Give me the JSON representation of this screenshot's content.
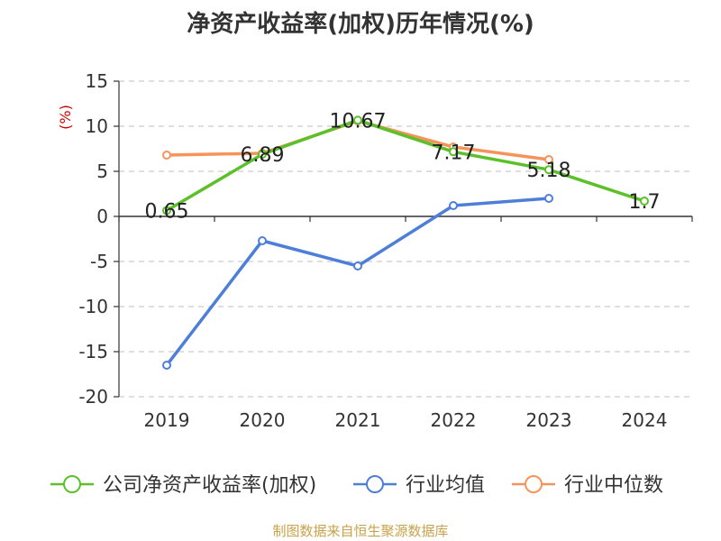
{
  "title": "净资产收益率(加权)历年情况(%)",
  "source": "制图数据来自恒生聚源数据库",
  "chart_data": {
    "type": "line",
    "title": "净资产收益率(加权)历年情况(%)",
    "ylabel": "(%)",
    "categories": [
      "2019",
      "2020",
      "2021",
      "2022",
      "2023",
      "2024"
    ],
    "ylim": [
      -20,
      15
    ],
    "yticks": [
      15,
      10,
      5,
      0,
      -5,
      -10,
      -15,
      -20
    ],
    "grid": true,
    "legend_position": "bottom",
    "series": [
      {
        "name": "公司净资产收益率(加权)",
        "color": "#5cc02b",
        "values": [
          0.65,
          6.89,
          10.67,
          7.17,
          5.18,
          1.7
        ],
        "labels": [
          "0.65",
          "6.89",
          "10.67",
          "7.17",
          "5.18",
          "1.7"
        ]
      },
      {
        "name": "行业均值",
        "color": "#4e7fd8",
        "values": [
          -16.5,
          -2.7,
          -5.5,
          1.2,
          2.0,
          null
        ]
      },
      {
        "name": "行业中位数",
        "color": "#f5935a",
        "values": [
          6.8,
          7.0,
          10.6,
          7.7,
          6.3,
          null
        ]
      }
    ]
  }
}
